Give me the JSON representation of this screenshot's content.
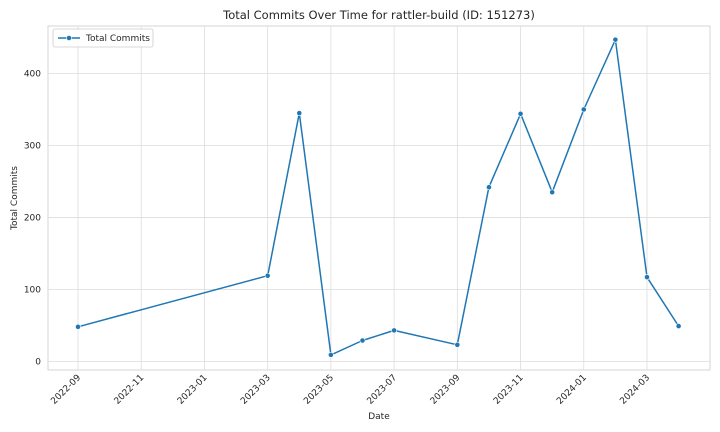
{
  "chart_data": {
    "type": "line",
    "title": "Total Commits Over Time for rattler-build (ID: 151273)",
    "xlabel": "Date",
    "ylabel": "Total Commits",
    "x_tick_labels": [
      "2022-09",
      "2022-11",
      "2023-01",
      "2023-03",
      "2023-05",
      "2023-07",
      "2023-09",
      "2023-11",
      "2024-01",
      "2024-03"
    ],
    "y_ticks": [
      0,
      100,
      200,
      300,
      400
    ],
    "ylim": [
      -12,
      466
    ],
    "grid": true,
    "legend_position": "top-left",
    "series": [
      {
        "name": "Total Commits",
        "color": "#1f77b4",
        "marker": "circle",
        "points": [
          {
            "x": "2022-09",
            "y": 48
          },
          {
            "x": "2023-03",
            "y": 119
          },
          {
            "x": "2023-04",
            "y": 345
          },
          {
            "x": "2023-05",
            "y": 9
          },
          {
            "x": "2023-06",
            "y": 29
          },
          {
            "x": "2023-07",
            "y": 43
          },
          {
            "x": "2023-09",
            "y": 23
          },
          {
            "x": "2023-10",
            "y": 242
          },
          {
            "x": "2023-11",
            "y": 344
          },
          {
            "x": "2023-12",
            "y": 235
          },
          {
            "x": "2024-01",
            "y": 350
          },
          {
            "x": "2024-02",
            "y": 447
          },
          {
            "x": "2024-03",
            "y": 117
          },
          {
            "x": "2024-04",
            "y": 49
          }
        ]
      }
    ]
  }
}
